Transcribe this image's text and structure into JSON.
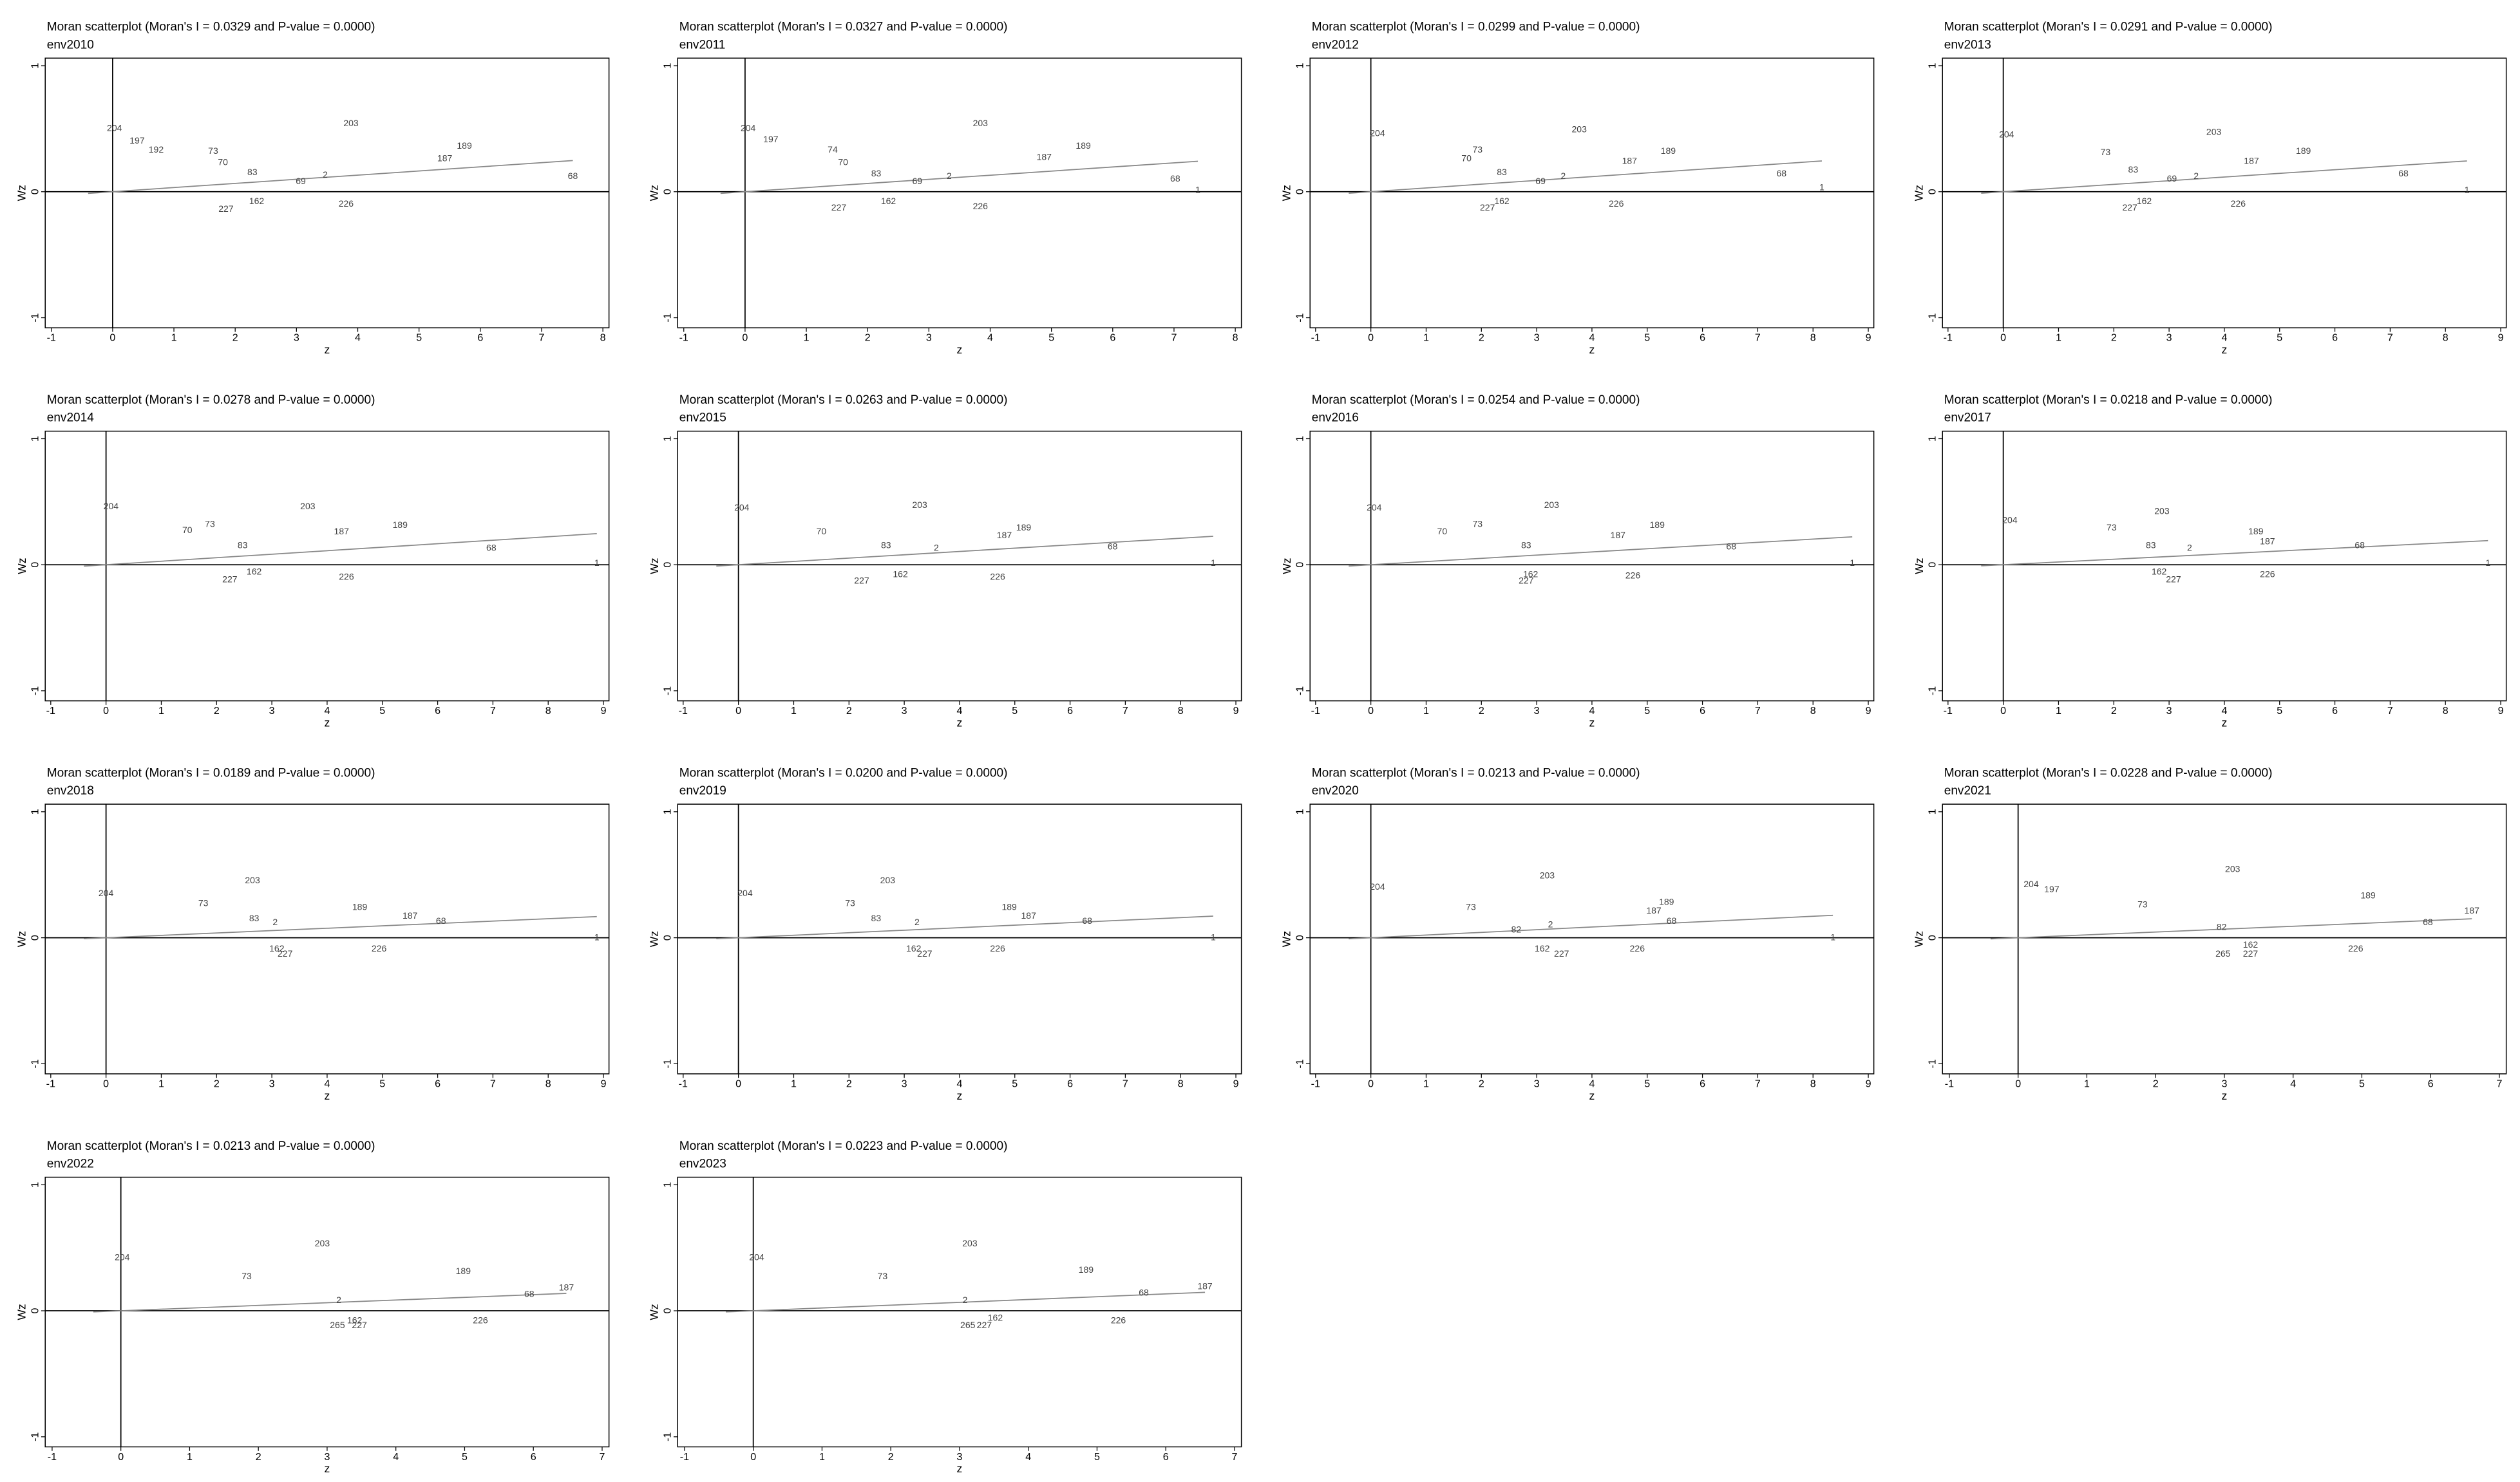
{
  "chart_data": [
    {
      "type": "scatter",
      "title": "Moran scatterplot (Moran's I = 0.0329 and P-value = 0.0000)",
      "subtitle": "env2010",
      "xlabel": "z",
      "ylabel": "Wz",
      "xlim": [
        -1.1,
        8.1
      ],
      "ylim": [
        -1.08,
        1.06
      ],
      "xticks": [
        -1,
        0,
        1,
        2,
        3,
        4,
        5,
        6,
        7,
        8
      ],
      "yticks": [
        -1,
        0,
        1
      ],
      "fit_slope": 0.0329,
      "labels": [
        "203",
        "189",
        "187",
        "68",
        "226",
        "162",
        "227",
        "2",
        "69",
        "83",
        "204",
        "197",
        "192",
        "73",
        "70"
      ],
      "x": [
        3.89,
        5.74,
        5.42,
        7.51,
        3.81,
        2.35,
        1.85,
        3.47,
        3.07,
        2.28,
        0.03,
        0.4,
        0.71,
        1.64,
        1.8
      ],
      "values": [
        0.54,
        0.36,
        0.26,
        0.12,
        -0.1,
        -0.08,
        -0.14,
        0.13,
        0.08,
        0.15,
        0.5,
        0.4,
        0.33,
        0.32,
        0.23
      ]
    },
    {
      "type": "scatter",
      "title": "Moran scatterplot (Moran's I = 0.0327 and P-value = 0.0000)",
      "subtitle": "env2011",
      "xlabel": "z",
      "ylabel": "Wz",
      "xlim": [
        -1.1,
        8.1
      ],
      "ylim": [
        -1.08,
        1.06
      ],
      "xticks": [
        -1,
        0,
        1,
        2,
        3,
        4,
        5,
        6,
        7,
        8
      ],
      "yticks": [
        -1,
        0,
        1
      ],
      "fit_slope": 0.0327,
      "labels": [
        "203",
        "189",
        "187",
        "68",
        "1",
        "226",
        "162",
        "227",
        "2",
        "69",
        "83",
        "204",
        "197",
        "74",
        "70"
      ],
      "x": [
        3.84,
        5.52,
        4.88,
        7.02,
        7.39,
        3.84,
        2.34,
        1.53,
        3.33,
        2.81,
        2.14,
        0.05,
        0.42,
        1.43,
        1.6
      ],
      "values": [
        0.54,
        0.36,
        0.27,
        0.1,
        0.01,
        -0.12,
        -0.08,
        -0.13,
        0.12,
        0.08,
        0.14,
        0.5,
        0.41,
        0.33,
        0.23
      ]
    },
    {
      "type": "scatter",
      "title": "Moran scatterplot (Moran's I = 0.0299 and P-value = 0.0000)",
      "subtitle": "env2012",
      "xlabel": "z",
      "ylabel": "Wz",
      "xlim": [
        -1.1,
        9.1
      ],
      "ylim": [
        -1.08,
        1.06
      ],
      "xticks": [
        -1,
        0,
        1,
        2,
        3,
        4,
        5,
        6,
        7,
        8,
        9
      ],
      "yticks": [
        -1,
        0,
        1
      ],
      "fit_slope": 0.0299,
      "labels": [
        "203",
        "189",
        "187",
        "68",
        "1",
        "226",
        "162",
        "227",
        "2",
        "69",
        "83",
        "204",
        "73",
        "70"
      ],
      "x": [
        3.77,
        5.38,
        4.68,
        7.43,
        8.16,
        4.44,
        2.37,
        2.11,
        3.48,
        3.07,
        2.37,
        0.12,
        1.93,
        1.73
      ],
      "values": [
        0.49,
        0.32,
        0.24,
        0.14,
        0.03,
        -0.1,
        -0.08,
        -0.13,
        0.12,
        0.08,
        0.15,
        0.46,
        0.33,
        0.26
      ]
    },
    {
      "type": "scatter",
      "title": "Moran scatterplot (Moran's I = 0.0291 and P-value = 0.0000)",
      "subtitle": "env2013",
      "xlabel": "z",
      "ylabel": "Wz",
      "xlim": [
        -1.1,
        9.1
      ],
      "ylim": [
        -1.08,
        1.06
      ],
      "xticks": [
        -1,
        0,
        1,
        2,
        3,
        4,
        5,
        6,
        7,
        8,
        9
      ],
      "yticks": [
        -1,
        0,
        1
      ],
      "fit_slope": 0.0291,
      "labels": [
        "203",
        "189",
        "187",
        "68",
        "1",
        "226",
        "162",
        "227",
        "2",
        "69",
        "83",
        "204",
        "73"
      ],
      "x": [
        3.81,
        5.43,
        4.49,
        7.24,
        8.39,
        4.25,
        2.55,
        2.29,
        3.49,
        3.05,
        2.35,
        0.06,
        1.85
      ],
      "values": [
        0.47,
        0.32,
        0.24,
        0.14,
        0.01,
        -0.1,
        -0.08,
        -0.13,
        0.12,
        0.1,
        0.17,
        0.45,
        0.31
      ]
    },
    {
      "type": "scatter",
      "title": "Moran scatterplot (Moran's I = 0.0278 and P-value = 0.0000)",
      "subtitle": "env2014",
      "xlabel": "z",
      "ylabel": "Wz",
      "xlim": [
        -1.1,
        9.1
      ],
      "ylim": [
        -1.08,
        1.06
      ],
      "xticks": [
        -1,
        0,
        1,
        2,
        3,
        4,
        5,
        6,
        7,
        8,
        9
      ],
      "yticks": [
        -1,
        0,
        1
      ],
      "fit_slope": 0.0278,
      "labels": [
        "203",
        "189",
        "187",
        "68",
        "1",
        "226",
        "162",
        "227",
        "83",
        "204",
        "73",
        "70"
      ],
      "x": [
        3.65,
        5.32,
        4.26,
        6.97,
        8.88,
        4.35,
        2.68,
        2.24,
        2.47,
        0.09,
        1.88,
        1.47
      ],
      "values": [
        0.46,
        0.31,
        0.26,
        0.13,
        0.01,
        -0.1,
        -0.06,
        -0.12,
        0.15,
        0.46,
        0.32,
        0.27
      ]
    },
    {
      "type": "scatter",
      "title": "Moran scatterplot (Moran's I = 0.0263 and P-value = 0.0000)",
      "subtitle": "env2015",
      "xlabel": "z",
      "ylabel": "Wz",
      "xlim": [
        -1.1,
        9.1
      ],
      "ylim": [
        -1.08,
        1.06
      ],
      "xticks": [
        -1,
        0,
        1,
        2,
        3,
        4,
        5,
        6,
        7,
        8,
        9
      ],
      "yticks": [
        -1,
        0,
        1
      ],
      "fit_slope": 0.0263,
      "labels": [
        "203",
        "189",
        "187",
        "68",
        "1",
        "226",
        "162",
        "227",
        "83",
        "204",
        "70",
        "2"
      ],
      "x": [
        3.28,
        5.16,
        4.81,
        6.77,
        8.59,
        4.69,
        2.93,
        2.23,
        2.67,
        0.06,
        1.5,
        3.58
      ],
      "values": [
        0.47,
        0.29,
        0.23,
        0.14,
        0.01,
        -0.1,
        -0.08,
        -0.13,
        0.15,
        0.45,
        0.26,
        0.13
      ]
    },
    {
      "type": "scatter",
      "title": "Moran scatterplot (Moran's I = 0.0254 and P-value = 0.0000)",
      "subtitle": "env2016",
      "xlabel": "z",
      "ylabel": "Wz",
      "xlim": [
        -1.1,
        9.1
      ],
      "ylim": [
        -1.08,
        1.06
      ],
      "xticks": [
        -1,
        0,
        1,
        2,
        3,
        4,
        5,
        6,
        7,
        8,
        9
      ],
      "yticks": [
        -1,
        0,
        1
      ],
      "fit_slope": 0.0254,
      "labels": [
        "203",
        "189",
        "187",
        "68",
        "1",
        "226",
        "162",
        "227",
        "83",
        "204",
        "70",
        "73"
      ],
      "x": [
        3.27,
        5.18,
        4.47,
        6.52,
        8.71,
        4.74,
        2.89,
        2.81,
        2.81,
        0.06,
        1.29,
        1.93
      ],
      "values": [
        0.47,
        0.31,
        0.23,
        0.14,
        0.01,
        -0.09,
        -0.08,
        -0.13,
        0.15,
        0.45,
        0.26,
        0.32
      ]
    },
    {
      "type": "scatter",
      "title": "Moran scatterplot (Moran's I = 0.0218 and P-value = 0.0000)",
      "subtitle": "env2017",
      "xlabel": "z",
      "ylabel": "Wz",
      "xlim": [
        -1.1,
        9.1
      ],
      "ylim": [
        -1.08,
        1.06
      ],
      "xticks": [
        -1,
        0,
        1,
        2,
        3,
        4,
        5,
        6,
        7,
        8,
        9
      ],
      "yticks": [
        -1,
        0,
        1
      ],
      "fit_slope": 0.0218,
      "labels": [
        "203",
        "189",
        "187",
        "68",
        "1",
        "226",
        "162",
        "227",
        "83",
        "204",
        "73",
        "2"
      ],
      "x": [
        2.87,
        4.57,
        4.78,
        6.45,
        8.77,
        4.78,
        2.82,
        3.08,
        2.67,
        0.12,
        1.96,
        3.37
      ],
      "values": [
        0.42,
        0.26,
        0.18,
        0.15,
        0.01,
        -0.08,
        -0.06,
        -0.12,
        0.15,
        0.35,
        0.29,
        0.13
      ]
    },
    {
      "type": "scatter",
      "title": "Moran scatterplot (Moran's I = 0.0189 and P-value = 0.0000)",
      "subtitle": "env2018",
      "xlabel": "z",
      "ylabel": "Wz",
      "xlim": [
        -1.1,
        9.1
      ],
      "ylim": [
        -1.08,
        1.06
      ],
      "xticks": [
        -1,
        0,
        1,
        2,
        3,
        4,
        5,
        6,
        7,
        8,
        9
      ],
      "yticks": [
        -1,
        0,
        1
      ],
      "fit_slope": 0.0189,
      "labels": [
        "203",
        "189",
        "187",
        "68",
        "1",
        "226",
        "162",
        "227",
        "83",
        "204",
        "73",
        "2"
      ],
      "x": [
        2.65,
        4.59,
        5.5,
        6.06,
        8.88,
        4.94,
        3.09,
        3.24,
        2.68,
        0,
        1.76,
        3.06
      ],
      "values": [
        0.45,
        0.24,
        0.17,
        0.13,
        0,
        -0.09,
        -0.09,
        -0.13,
        0.15,
        0.35,
        0.27,
        0.12
      ]
    },
    {
      "type": "scatter",
      "title": "Moran scatterplot (Moran's I = 0.0200 and P-value = 0.0000)",
      "subtitle": "env2019",
      "xlabel": "z",
      "ylabel": "Wz",
      "xlim": [
        -1.1,
        9.1
      ],
      "ylim": [
        -1.08,
        1.06
      ],
      "xticks": [
        -1,
        0,
        1,
        2,
        3,
        4,
        5,
        6,
        7,
        8,
        9
      ],
      "yticks": [
        -1,
        0,
        1
      ],
      "fit_slope": 0.02,
      "labels": [
        "203",
        "189",
        "187",
        "68",
        "1",
        "226",
        "162",
        "227",
        "73",
        "83",
        "2",
        "204"
      ],
      "x": [
        2.7,
        4.9,
        5.25,
        6.31,
        8.59,
        4.69,
        3.17,
        3.37,
        2.02,
        2.49,
        3.23,
        0.12
      ],
      "values": [
        0.45,
        0.24,
        0.17,
        0.13,
        0,
        -0.09,
        -0.09,
        -0.13,
        0.27,
        0.15,
        0.12,
        0.35
      ]
    },
    {
      "type": "scatter",
      "title": "Moran scatterplot (Moran's I = 0.0213 and P-value = 0.0000)",
      "subtitle": "env2020",
      "xlabel": "z",
      "ylabel": "Wz",
      "xlim": [
        -1.1,
        9.1
      ],
      "ylim": [
        -1.08,
        1.06
      ],
      "xticks": [
        -1,
        0,
        1,
        2,
        3,
        4,
        5,
        6,
        7,
        8,
        9
      ],
      "yticks": [
        -1,
        0,
        1
      ],
      "fit_slope": 0.0213,
      "labels": [
        "203",
        "189",
        "187",
        "68",
        "1",
        "226",
        "162",
        "227",
        "73",
        "82",
        "2",
        "204"
      ],
      "x": [
        3.19,
        5.35,
        5.12,
        5.44,
        8.36,
        4.82,
        3.1,
        3.45,
        1.81,
        2.63,
        3.25,
        0.12
      ],
      "values": [
        0.49,
        0.28,
        0.21,
        0.13,
        0,
        -0.09,
        -0.09,
        -0.13,
        0.24,
        0.06,
        0.1,
        0.4
      ]
    },
    {
      "type": "scatter",
      "title": "Moran scatterplot (Moran's I = 0.0228 and P-value = 0.0000)",
      "subtitle": "env2021",
      "xlabel": "z",
      "ylabel": "Wz",
      "xlim": [
        -1.1,
        7.1
      ],
      "ylim": [
        -1.08,
        1.06
      ],
      "xticks": [
        -1,
        0,
        1,
        2,
        3,
        4,
        5,
        6,
        7
      ],
      "yticks": [
        -1,
        0,
        1
      ],
      "fit_slope": 0.0228,
      "labels": [
        "203",
        "189",
        "187",
        "68",
        "226",
        "162",
        "227",
        "265",
        "73",
        "82",
        "204",
        "197"
      ],
      "x": [
        3.12,
        5.09,
        6.6,
        5.96,
        4.91,
        3.38,
        3.38,
        2.98,
        1.81,
        2.96,
        0.19,
        0.49
      ],
      "values": [
        0.54,
        0.33,
        0.21,
        0.12,
        -0.09,
        -0.06,
        -0.13,
        -0.13,
        0.26,
        0.08,
        0.42,
        0.38
      ]
    },
    {
      "type": "scatter",
      "title": "Moran scatterplot (Moran's I = 0.0213 and P-value = 0.0000)",
      "subtitle": "env2022",
      "xlabel": "z",
      "ylabel": "Wz",
      "xlim": [
        -1.1,
        7.1
      ],
      "ylim": [
        -1.08,
        1.06
      ],
      "xticks": [
        -1,
        0,
        1,
        2,
        3,
        4,
        5,
        6,
        7
      ],
      "yticks": [
        -1,
        0,
        1
      ],
      "fit_slope": 0.0213,
      "labels": [
        "203",
        "189",
        "187",
        "68",
        "226",
        "162",
        "227",
        "265",
        "73",
        "204",
        "2"
      ],
      "x": [
        2.93,
        4.98,
        6.48,
        5.94,
        5.23,
        3.4,
        3.47,
        3.15,
        1.83,
        0.02,
        3.17
      ],
      "values": [
        0.53,
        0.31,
        0.18,
        0.13,
        -0.08,
        -0.08,
        -0.12,
        -0.12,
        0.27,
        0.42,
        0.08
      ]
    },
    {
      "type": "scatter",
      "title": "Moran scatterplot (Moran's I = 0.0223 and P-value = 0.0000)",
      "subtitle": "env2023",
      "xlabel": "z",
      "ylabel": "Wz",
      "xlim": [
        -1.1,
        7.1
      ],
      "ylim": [
        -1.08,
        1.06
      ],
      "xticks": [
        -1,
        0,
        1,
        2,
        3,
        4,
        5,
        6,
        7
      ],
      "yticks": [
        -1,
        0,
        1
      ],
      "fit_slope": 0.0223,
      "labels": [
        "203",
        "189",
        "187",
        "68",
        "226",
        "162",
        "227",
        "265",
        "73",
        "204",
        "2"
      ],
      "x": [
        3.15,
        4.84,
        6.57,
        5.68,
        5.31,
        3.52,
        3.36,
        3.12,
        1.88,
        0.05,
        3.08
      ],
      "values": [
        0.53,
        0.32,
        0.19,
        0.14,
        -0.08,
        -0.06,
        -0.12,
        -0.12,
        0.27,
        0.42,
        0.08
      ]
    }
  ]
}
